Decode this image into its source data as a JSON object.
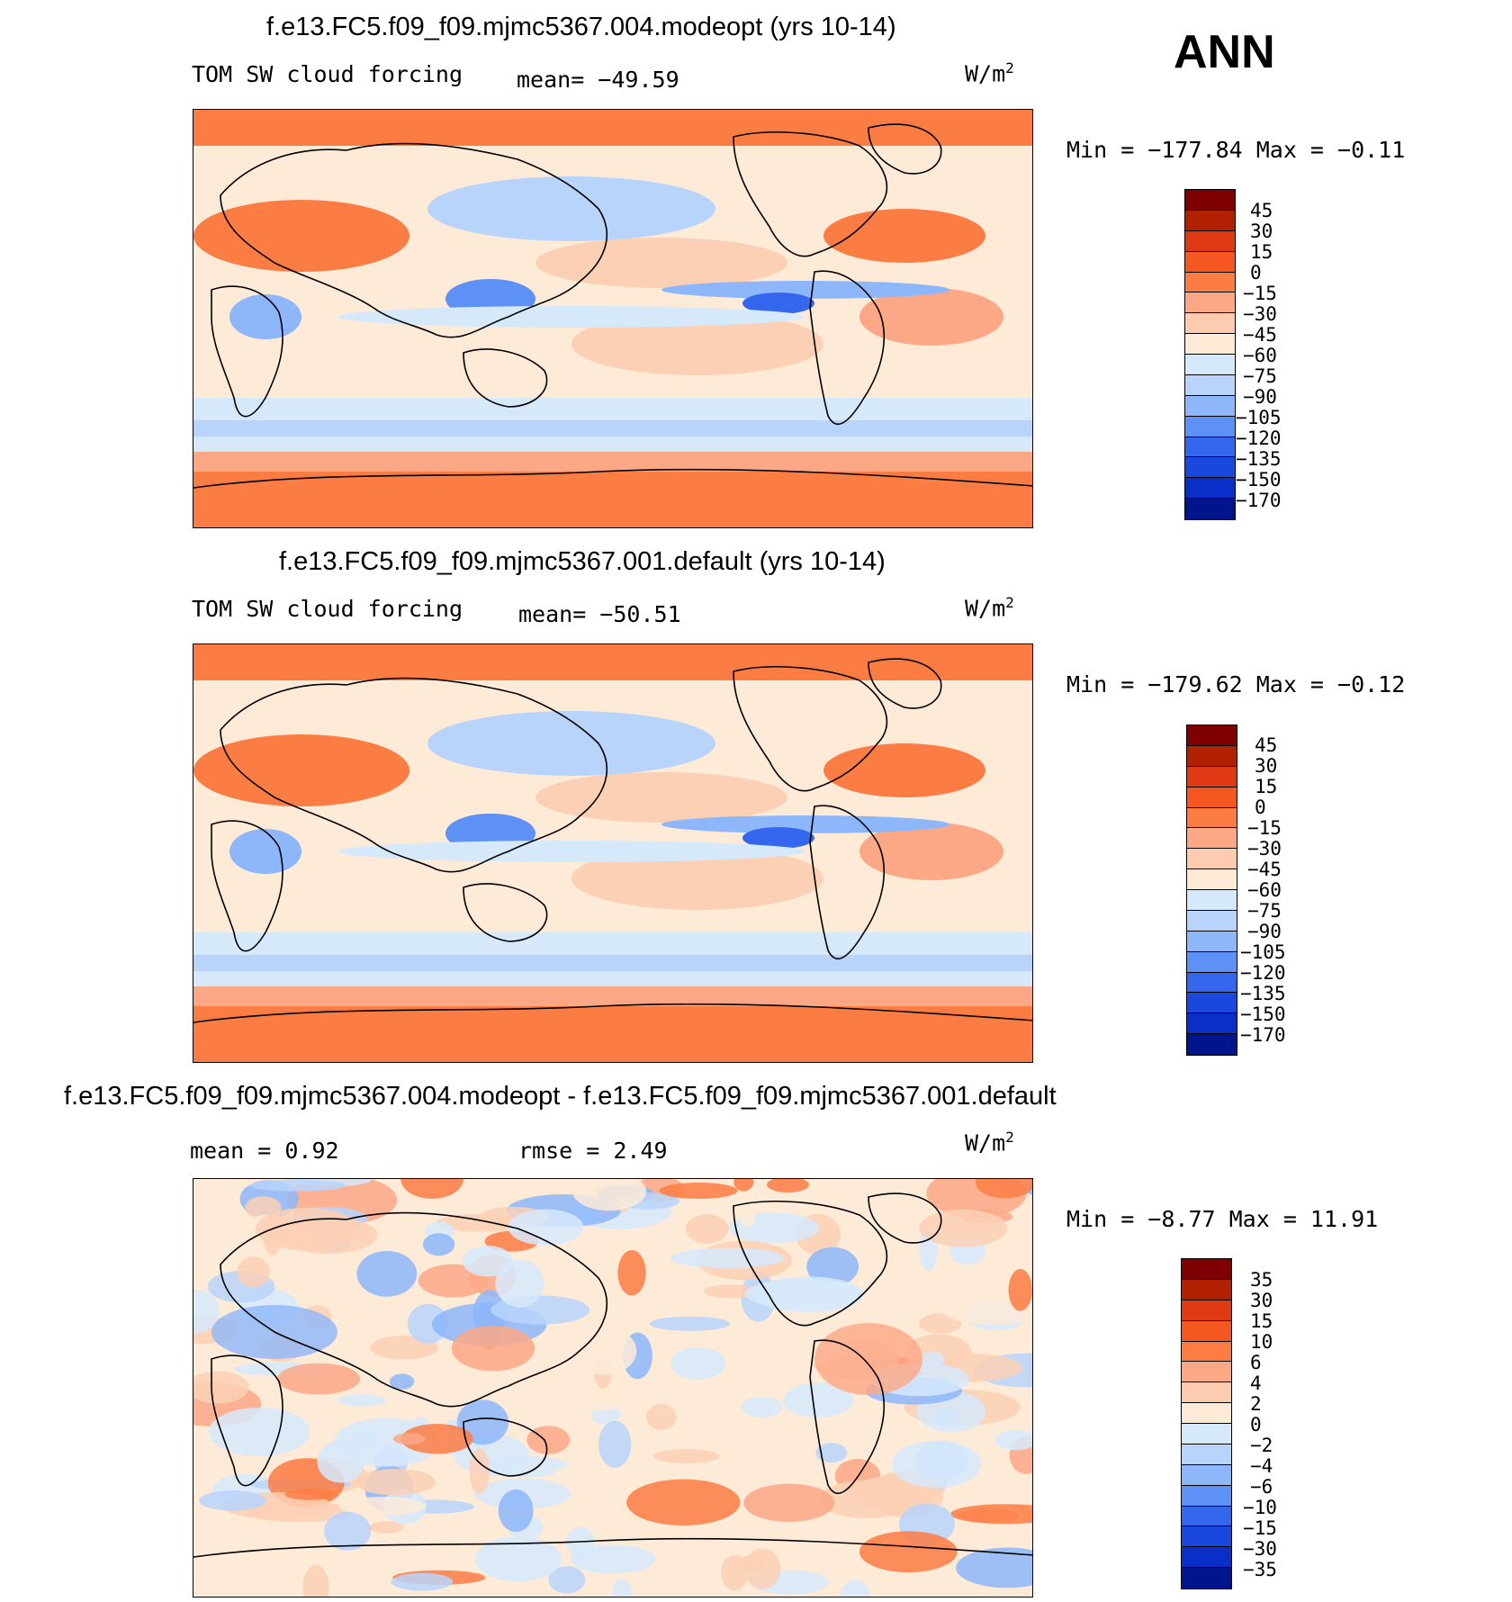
{
  "season": "ANN",
  "units": {
    "base": "W/m",
    "exp": "2"
  },
  "palettes": {
    "abs": [
      "#7f0000",
      "#b12000",
      "#e03a14",
      "#f6561f",
      "#fb7d44",
      "#fca886",
      "#fdcbb0",
      "#fdebd8",
      "#d6e9fb",
      "#b8d4fb",
      "#8db7fa",
      "#5e91f5",
      "#3567ee",
      "#1a48df",
      "#0a2ec8",
      "#00148c"
    ],
    "diff": [
      "#7f0000",
      "#b12000",
      "#e03a14",
      "#f6561f",
      "#fb7d44",
      "#fca886",
      "#fdcbb0",
      "#fdebd8",
      "#d6e9fb",
      "#b8d4fb",
      "#8db7fa",
      "#5e91f5",
      "#3567ee",
      "#1a48df",
      "#0a2ec8",
      "#00148c"
    ]
  },
  "panels": [
    {
      "title": "f.e13.FC5.f09_f09.mjmc5367.004.modeopt (yrs 10-14)",
      "variable": "TOM SW cloud forcing",
      "stat1": "mean= −49.59",
      "stat2": "",
      "minmax": "Min = −177.84 Max =  −0.11",
      "levels": [
        "45",
        "30",
        "15",
        "0",
        "−15",
        "−30",
        "−45",
        "−60",
        "−75",
        "−90",
        "−105",
        "−120",
        "−135",
        "−150",
        "−170"
      ]
    },
    {
      "title": "f.e13.FC5.f09_f09.mjmc5367.001.default (yrs 10-14)",
      "variable": "TOM SW cloud forcing",
      "stat1": "mean= −50.51",
      "stat2": "",
      "minmax": "Min = −179.62 Max =  −0.12",
      "levels": [
        "45",
        "30",
        "15",
        "0",
        "−15",
        "−30",
        "−45",
        "−60",
        "−75",
        "−90",
        "−105",
        "−120",
        "−135",
        "−150",
        "−170"
      ]
    },
    {
      "title": "f.e13.FC5.f09_f09.mjmc5367.004.modeopt - f.e13.FC5.f09_f09.mjmc5367.001.default",
      "variable": "",
      "stat1": "mean =   0.92",
      "stat2": "rmse =   2.49",
      "minmax": "Min =  −8.77 Max =  11.91",
      "levels": [
        "35",
        "30",
        "15",
        "10",
        "6",
        "4",
        "2",
        "0",
        "−2",
        "−4",
        "−6",
        "−10",
        "−15",
        "−30",
        "−35"
      ]
    }
  ],
  "chart_data": [
    {
      "type": "heatmap",
      "title": "f.e13.FC5.f09_f09.mjmc5367.004.modeopt (yrs 10-14)",
      "variable": "TOM SW cloud forcing",
      "units": "W/m^2",
      "mean": -49.59,
      "min": -177.84,
      "max": -0.11,
      "contour_levels": [
        45,
        30,
        15,
        0,
        -15,
        -30,
        -45,
        -60,
        -75,
        -90,
        -105,
        -120,
        -135,
        -150,
        -170
      ]
    },
    {
      "type": "heatmap",
      "title": "f.e13.FC5.f09_f09.mjmc5367.001.default (yrs 10-14)",
      "variable": "TOM SW cloud forcing",
      "units": "W/m^2",
      "mean": -50.51,
      "min": -179.62,
      "max": -0.12,
      "contour_levels": [
        45,
        30,
        15,
        0,
        -15,
        -30,
        -45,
        -60,
        -75,
        -90,
        -105,
        -120,
        -135,
        -150,
        -170
      ]
    },
    {
      "type": "heatmap",
      "title": "f.e13.FC5.f09_f09.mjmc5367.004.modeopt - f.e13.FC5.f09_f09.mjmc5367.001.default",
      "units": "W/m^2",
      "mean": 0.92,
      "rmse": 2.49,
      "min": -8.77,
      "max": 11.91,
      "contour_levels": [
        35,
        30,
        15,
        10,
        6,
        4,
        2,
        0,
        -2,
        -4,
        -6,
        -10,
        -15,
        -30,
        -35
      ]
    }
  ]
}
